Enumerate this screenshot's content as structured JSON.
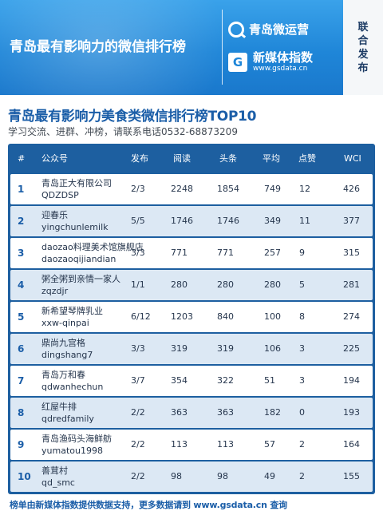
{
  "banner": {
    "title": "青岛最有影响力的微信排行榜",
    "brand_qd": "青岛微运营",
    "brand_icon_letter": "G",
    "brand_name": "新媒体指数",
    "brand_url": "www.gsdata.cn",
    "side_text": "联合发布",
    "colors": {
      "banner_blue": "#1f86d8",
      "accent_dark": "#1b5ea8"
    }
  },
  "heading": {
    "title": "青岛最有影响力美食类微信排行榜TOP10",
    "subtitle": "学习交流、进群、冲榜，请联系电话0532-68873209"
  },
  "table": {
    "headers": [
      "#",
      "公众号",
      "发布",
      "阅读",
      "头条",
      "平均",
      "点赞",
      "WCI"
    ],
    "rows": [
      {
        "rank": "1",
        "name": "青岛正大有限公司",
        "id": "QDZDSP",
        "publish": "2/3",
        "read": "2248",
        "headline": "1854",
        "avg": "749",
        "likes": "12",
        "wci": "426"
      },
      {
        "rank": "2",
        "name": "迎春乐",
        "id": "yingchunlemilk",
        "publish": "5/5",
        "read": "1746",
        "headline": "1746",
        "avg": "349",
        "likes": "11",
        "wci": "377"
      },
      {
        "rank": "3",
        "name": "daozao料理美术馆旗舰店",
        "id": "daozaoqijiandian",
        "publish": "3/3",
        "read": "771",
        "headline": "771",
        "avg": "257",
        "likes": "9",
        "wci": "315"
      },
      {
        "rank": "4",
        "name": "粥全粥到亲情一家人",
        "id": "zqzdjr",
        "publish": "1/1",
        "read": "280",
        "headline": "280",
        "avg": "280",
        "likes": "5",
        "wci": "281"
      },
      {
        "rank": "5",
        "name": "新希望琴牌乳业",
        "id": "xxw-qinpai",
        "publish": "6/12",
        "read": "1203",
        "headline": "840",
        "avg": "100",
        "likes": "8",
        "wci": "274"
      },
      {
        "rank": "6",
        "name": "鼎尚九宫格",
        "id": "dingshang7",
        "publish": "3/3",
        "read": "319",
        "headline": "319",
        "avg": "106",
        "likes": "3",
        "wci": "225"
      },
      {
        "rank": "7",
        "name": "青岛万和春",
        "id": "qdwanhechun",
        "publish": "3/7",
        "read": "354",
        "headline": "322",
        "avg": "51",
        "likes": "3",
        "wci": "194"
      },
      {
        "rank": "8",
        "name": "红屋牛排",
        "id": "qdredfamily",
        "publish": "2/2",
        "read": "363",
        "headline": "363",
        "avg": "182",
        "likes": "0",
        "wci": "193"
      },
      {
        "rank": "9",
        "name": "青岛渔码头海鲜舫",
        "id": "yumatou1998",
        "publish": "2/2",
        "read": "113",
        "headline": "113",
        "avg": "57",
        "likes": "2",
        "wci": "164"
      },
      {
        "rank": "10",
        "name": "善茸村",
        "id": "qd_smc",
        "publish": "2/2",
        "read": "98",
        "headline": "98",
        "avg": "49",
        "likes": "2",
        "wci": "155"
      }
    ]
  },
  "footer": "榜单由新媒体指数提供数据支持，更多数据请到 www.gsdata.cn 查询"
}
